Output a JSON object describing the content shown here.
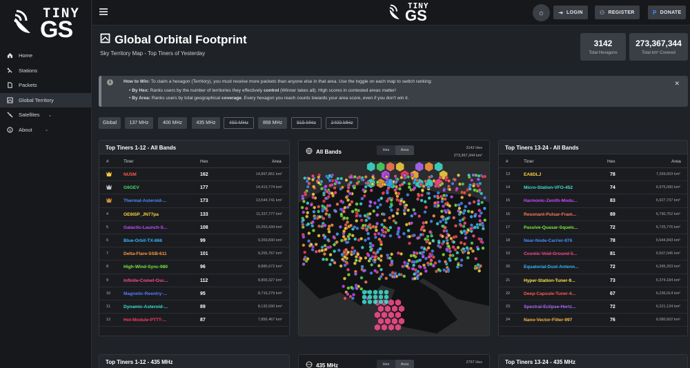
{
  "app": {
    "logo_tiny": "TINY",
    "logo_gs": "GS"
  },
  "sidebar": {
    "items": [
      {
        "label": "Home",
        "icon": "home-icon"
      },
      {
        "label": "Stations",
        "icon": "antenna-icon"
      },
      {
        "label": "Packets",
        "icon": "file-icon"
      },
      {
        "label": "Global Territory",
        "icon": "map-icon",
        "active": true
      },
      {
        "label": "Satellites",
        "icon": "satellite-icon",
        "chevron": true
      },
      {
        "label": "About",
        "icon": "info-icon",
        "chevron": true
      }
    ]
  },
  "topbar": {
    "login": "LOGIN",
    "register": "REGISTER",
    "donate": "DONATE"
  },
  "page": {
    "title": "Global Orbital Footprint",
    "subtitle": "Sky Territory Map - Top Tiners of Yesterday",
    "total_hexagons": "3142",
    "total_hexagons_label": "Total Hexagons",
    "total_km": "273,367,344",
    "total_km_label": "Total km² Covered"
  },
  "info": {
    "line1_bold": "How to Win:",
    "line1": " To claim a hexagon (Territory), you must receive more packets than anyone else in that area. Use the toggle on each map to switch ranking:",
    "line2_bold": "By Hex:",
    "line2a": " Ranks users by the number of territories they effectively ",
    "line2_bold2": "control",
    "line2b": " (Winner takes all). High scores in contested areas matter!",
    "line3_bold": "By Area:",
    "line3a": " Ranks users by total geographical ",
    "line3_bold2": "coverage",
    "line3b": ". Every hexagon you reach counts towards your area score, even if you don't win it."
  },
  "bands": [
    {
      "label": "Global",
      "on": true
    },
    {
      "label": "137 MHz",
      "on": true
    },
    {
      "label": "400 MHz",
      "on": true
    },
    {
      "label": "435 MHz",
      "on": true
    },
    {
      "label": "450 MHz",
      "on": false
    },
    {
      "label": "868 MHz",
      "on": true
    },
    {
      "label": "915 MHz",
      "on": false
    },
    {
      "label": "2400 MHz",
      "on": false
    }
  ],
  "left_table": {
    "title": "Top Tiners 1-12 - All Bands",
    "headers": {
      "rank": "#",
      "tiner": "Tiner",
      "hex": "Hex",
      "area": "Area"
    },
    "rows": [
      {
        "rank": "1",
        "name": "NU5M",
        "color": "#ff5a4e",
        "hex": "162",
        "area": "14,897,861 km²"
      },
      {
        "rank": "2",
        "name": "G6GEV",
        "color": "#4cd964",
        "hex": "177",
        "area": "14,413,774 km²"
      },
      {
        "rank": "3",
        "name": "Thermal-Asteroid-...",
        "color": "#4a8cff",
        "hex": "173",
        "area": "13,544,741 km²"
      },
      {
        "rank": "4",
        "name": "OE6ISP_JN77pa",
        "color": "#ffd23f",
        "hex": "133",
        "area": "11,337,777 km²"
      },
      {
        "rank": "5",
        "name": "Galactic-Launch-S...",
        "color": "#c64cff",
        "hex": "108",
        "area": "10,253,434 km²"
      },
      {
        "rank": "6",
        "name": "Blue-Orbit-TX-866",
        "color": "#38b6ff",
        "hex": "99",
        "area": "9,269,830 km²"
      },
      {
        "rank": "7",
        "name": "Delta-Flare-SSB-611",
        "color": "#ff9a3c",
        "hex": "101",
        "area": "9,255,767 km²"
      },
      {
        "rank": "8",
        "name": "High-Wind-Sync-980",
        "color": "#7bea3f",
        "hex": "96",
        "area": "8,885,672 km²"
      },
      {
        "rank": "9",
        "name": "Infinite-Comet-Osc...",
        "color": "#ff4d8d",
        "hex": "112",
        "area": "8,809,327 km²"
      },
      {
        "rank": "10",
        "name": "Magnetic-Reentry-...",
        "color": "#5a7bff",
        "hex": "95",
        "area": "8,716,279 km²"
      },
      {
        "rank": "11",
        "name": "Dynamic-Asteroid-...",
        "color": "#3fe0d0",
        "hex": "89",
        "area": "8,132,690 km²"
      },
      {
        "rank": "12",
        "name": "Hot-Module-PTTT-...",
        "color": "#ff3b5c",
        "hex": "87",
        "area": "7,856,467 km²"
      }
    ]
  },
  "right_table": {
    "title": "Top Tiners 13-24 - All Bands",
    "headers": {
      "rank": "#",
      "tiner": "Tiner",
      "hex": "Hex",
      "area": "Area"
    },
    "rows": [
      {
        "rank": "13",
        "name": "EA8DLJ",
        "color": "#ffd23f",
        "hex": "78",
        "area": "7,269,603 km²"
      },
      {
        "rank": "14",
        "name": "Micro-Station-VFO-452",
        "color": "#3fe0d0",
        "hex": "74",
        "area": "6,975,090 km²"
      },
      {
        "rank": "15",
        "name": "Harmonic-Zenith-Modu...",
        "color": "#c64cff",
        "hex": "83",
        "area": "6,927,737 km²"
      },
      {
        "rank": "16",
        "name": "Resonant-Pulsar-Fram...",
        "color": "#ff7a59",
        "hex": "89",
        "area": "6,790,752 km²"
      },
      {
        "rank": "17",
        "name": "Passive-Quasar-Squelc...",
        "color": "#7bea3f",
        "hex": "72",
        "area": "6,725,776 km²"
      },
      {
        "rank": "18",
        "name": "Near-Node-Carrier-876",
        "color": "#4a8cff",
        "hex": "78",
        "area": "6,644,843 km²"
      },
      {
        "rank": "19",
        "name": "Cosmic-Void-Ground-5...",
        "color": "#ff4d8d",
        "hex": "81",
        "area": "6,507,046 km²"
      },
      {
        "rank": "20",
        "name": "Equatorial-Dust-Antenn...",
        "color": "#38b6ff",
        "hex": "72",
        "area": "6,395,203 km²"
      },
      {
        "rank": "21",
        "name": "Hyper-Station-Tuner-9...",
        "color": "#ffe14a",
        "hex": "73",
        "area": "6,374,184 km²"
      },
      {
        "rank": "22",
        "name": "Deep-Capsule-Tuner-6...",
        "color": "#ff5a4e",
        "hex": "67",
        "area": "6,236,014 km²"
      },
      {
        "rank": "23",
        "name": "Spectral-Eclipse-Hertz...",
        "color": "#b06bff",
        "hex": "72",
        "area": "6,221,134 km²"
      },
      {
        "rank": "24",
        "name": "Nano-Vector-Filter-997",
        "color": "#ffb83f",
        "hex": "76",
        "area": "6,080,602 km²"
      }
    ]
  },
  "map_all": {
    "title": "All Bands",
    "toggle_hex": "Hex",
    "toggle_area": "Area",
    "hex_count": "3142 Hex",
    "km_count": "273,367,344 km²"
  },
  "bottom": {
    "left_title": "Top Tiners 1-12 - 435 MHz",
    "map_title": "435 MHz",
    "map_hex": "2757 Hex",
    "right_title": "Top Tiners 13-24 - 435 MHz"
  }
}
